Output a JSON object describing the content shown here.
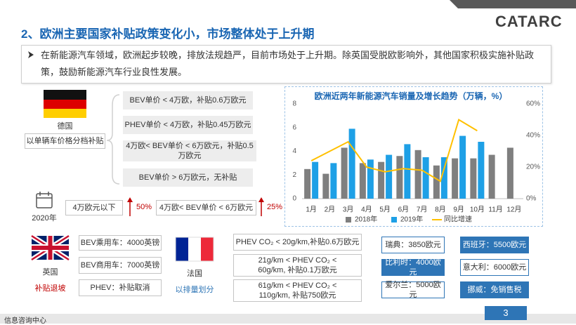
{
  "header": {
    "title": "2、欧洲主要国家补贴政策变化小，市场整体处于上升期",
    "logo": "CATARC"
  },
  "intro": "在新能源汽车领域，欧洲起步较晚，排放法规趋严，目前市场处于上升期。除英国受脱欧影响外，其他国家积极实施补贴政策，鼓励新能源汽车行业良性发展。",
  "germany": {
    "country": "德国",
    "scheme": "以单辆车价格分档补贴",
    "rules": [
      "BEV单价 < 4万欧，补贴0.6万欧元",
      "PHEV单价 < 4万欧，补贴0.45万欧元",
      "4万欧< BEV单价 < 6万欧元，补贴0.5万欧元",
      "BEV单价 > 6万欧元，无补贴"
    ],
    "year": "2020年",
    "changes": [
      {
        "range": "4万欧元以下",
        "rate": "50%"
      },
      {
        "range": "4万欧< BEV单价 < 6万欧元",
        "rate": "25%"
      }
    ]
  },
  "chart_data": {
    "type": "bar",
    "title": "欧洲近两年新能源汽车销量及增长趋势（万辆，%）",
    "categories": [
      "1月",
      "2月",
      "3月",
      "4月",
      "5月",
      "6月",
      "7月",
      "8月",
      "9月",
      "10月",
      "11月",
      "12月"
    ],
    "series": [
      {
        "name": "2018年",
        "color": "#7f7f7f",
        "values": [
          2.5,
          2.1,
          4.3,
          3.0,
          3.1,
          3.6,
          4.1,
          2.8,
          3.4,
          3.4,
          3.7,
          4.3
        ]
      },
      {
        "name": "2019年",
        "color": "#1ea0e6",
        "values": [
          3.1,
          3.0,
          5.9,
          3.3,
          3.7,
          4.6,
          3.5,
          3.5,
          5.3,
          4.8,
          null,
          null
        ]
      },
      {
        "name": "同比增速",
        "color": "#ffc000",
        "type": "line",
        "axis": "y2",
        "values": [
          24,
          30,
          36,
          20,
          17,
          19,
          18,
          11,
          50,
          43,
          null,
          null
        ]
      }
    ],
    "ylim": [
      0,
      8
    ],
    "yticks": [
      0,
      2,
      4,
      6,
      8
    ],
    "y2lim": [
      0,
      60
    ],
    "y2ticks": [
      {
        "value": 0,
        "label": "0%"
      },
      {
        "value": 20,
        "label": "20%"
      },
      {
        "value": 40,
        "label": "40%"
      },
      {
        "value": 60,
        "label": "60%"
      }
    ],
    "legend": "bottom"
  },
  "uk": {
    "country": "英国",
    "note": "补贴退坡",
    "rules": [
      "BEV乘用车：4000英镑",
      "BEV商用车：7000英镑",
      "PHEV：补贴取消"
    ]
  },
  "france": {
    "country": "法国",
    "note": "以排量划分",
    "rules": [
      "PHEV CO₂ < 20g/km,补贴0.6万欧元",
      "21g/km < PHEV CO₂ < 60g/km, 补贴0.1万欧元",
      "61g/km < PHEV CO₂ < 110g/km, 补贴750欧元"
    ]
  },
  "others": [
    "瑞典：3850欧元",
    "西班牙：5500欧元",
    "比利时：4000欧元",
    "意大利：6000欧元",
    "爱尔兰：5000欧元",
    "挪威：免销售税"
  ],
  "footer": {
    "org": "信息咨询中心",
    "page": 3
  }
}
